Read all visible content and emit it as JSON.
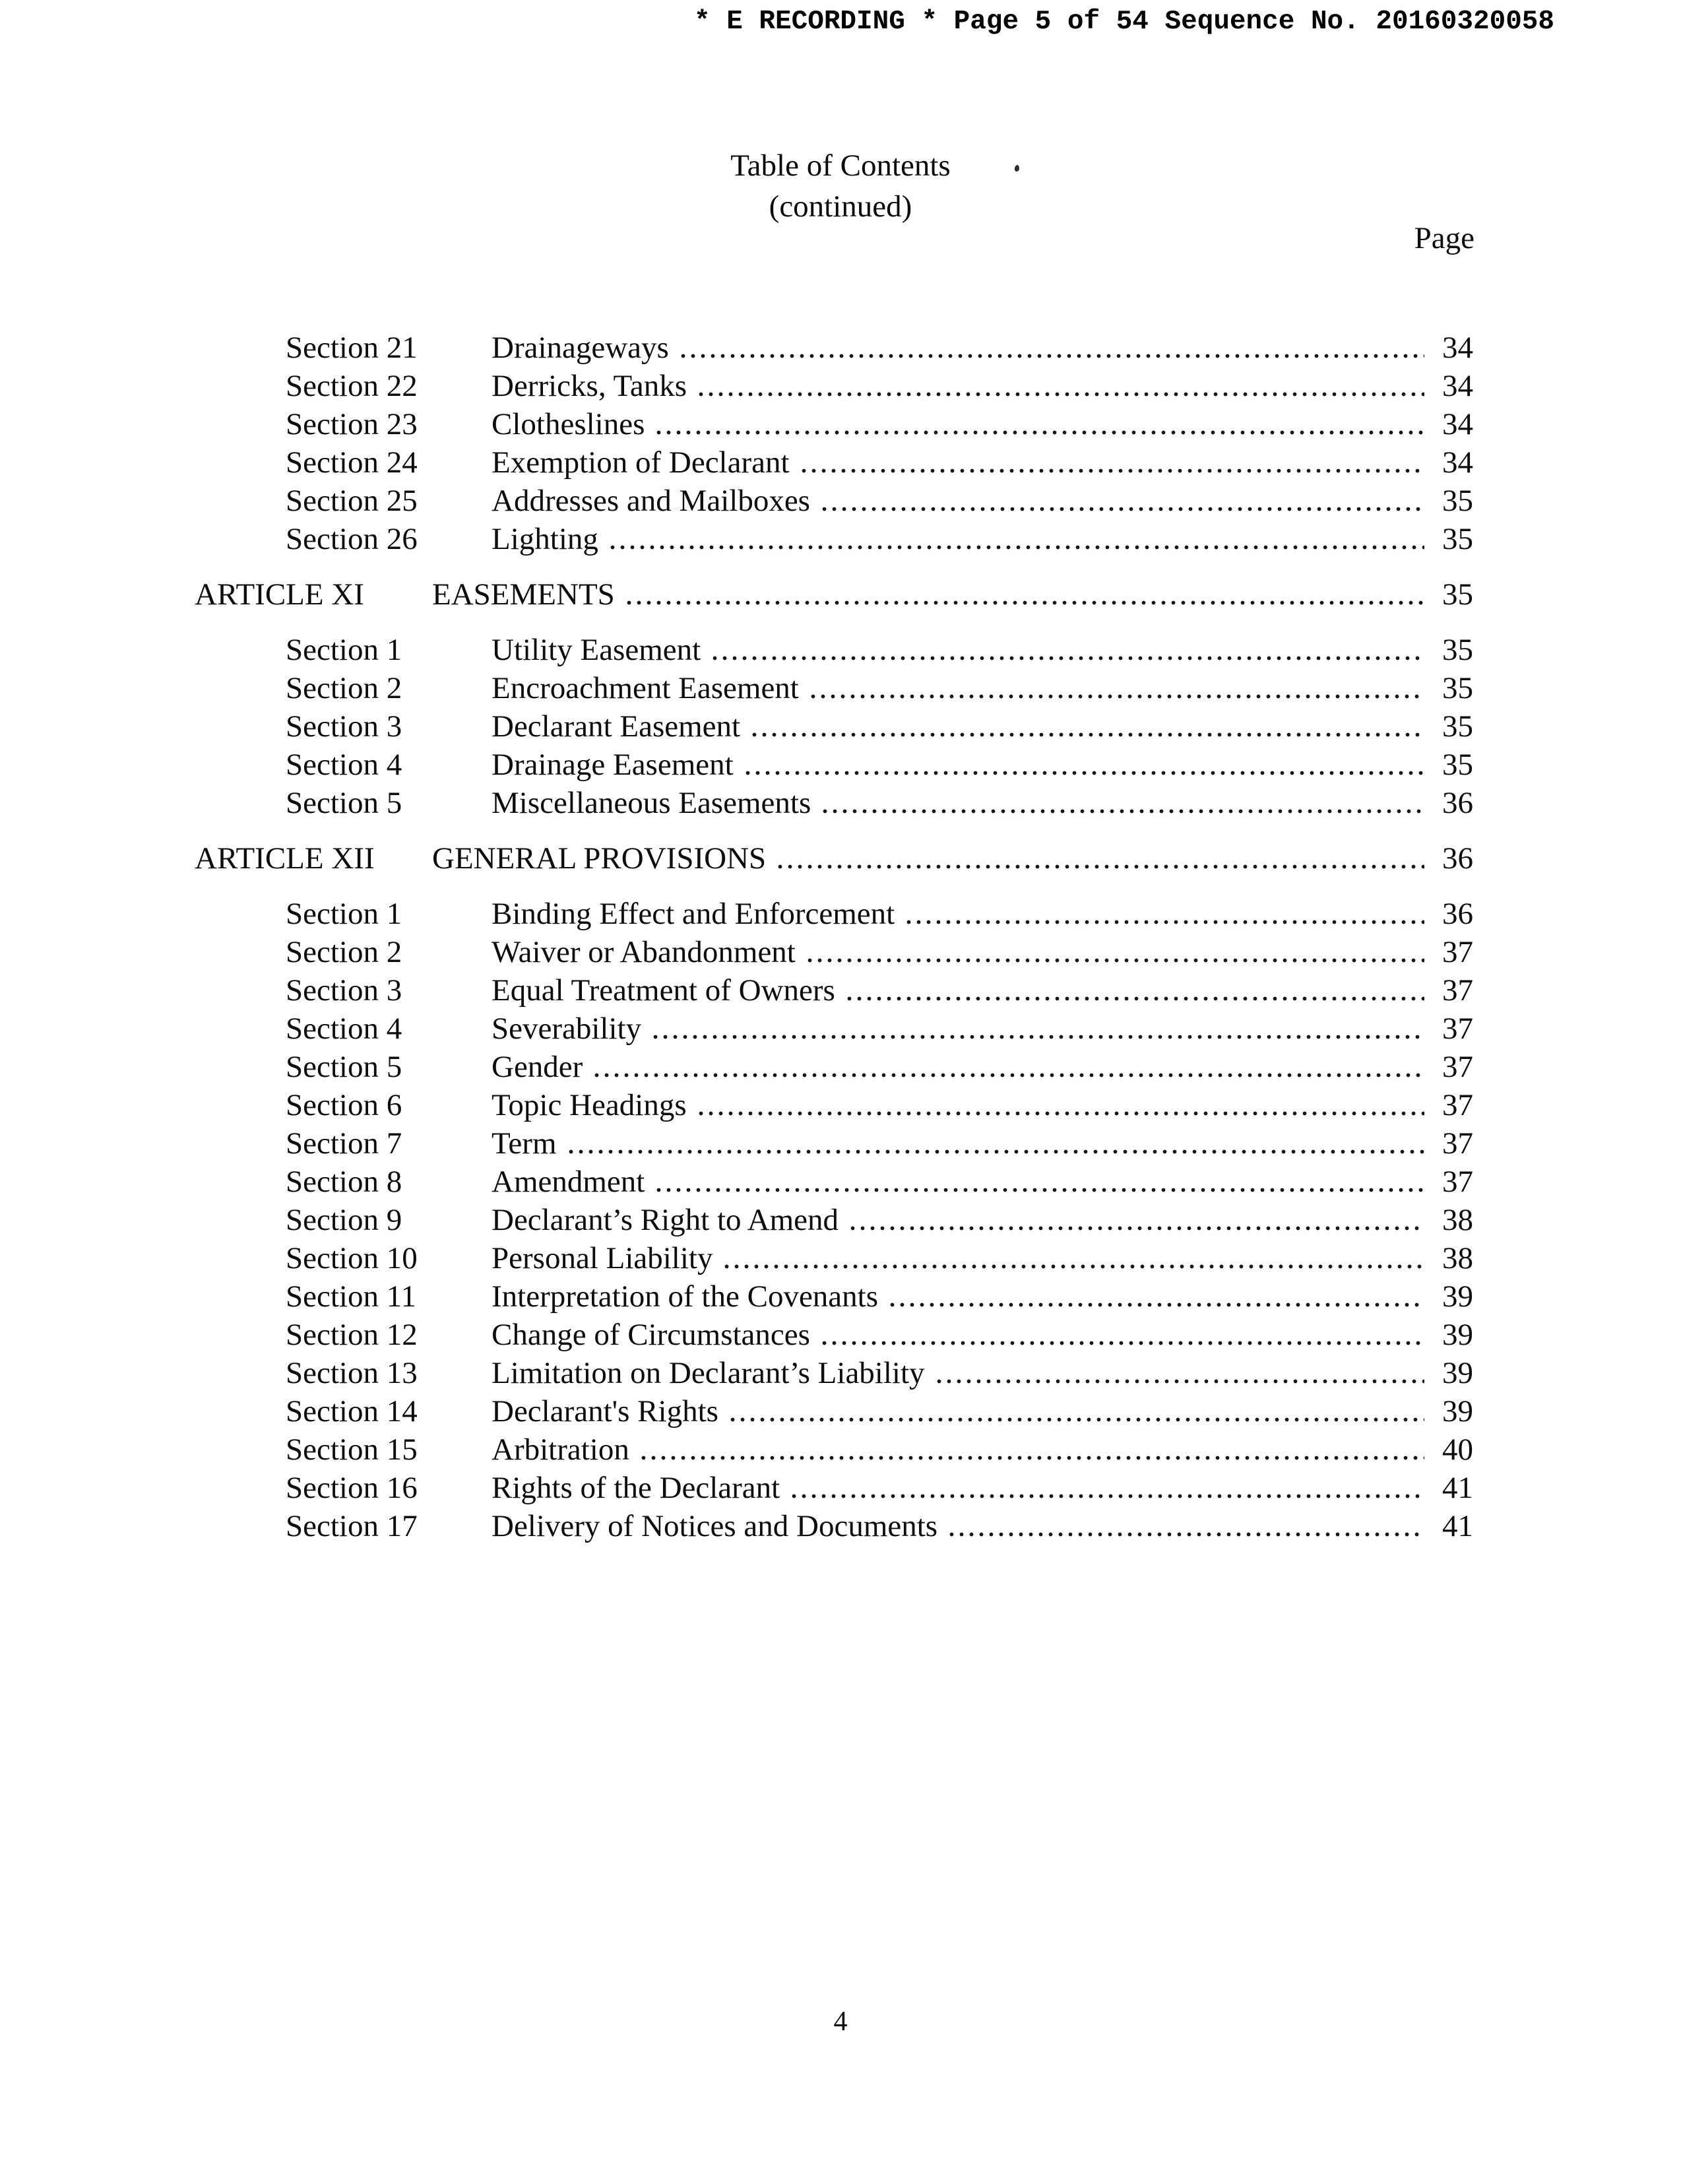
{
  "colors": {
    "ink": "#0e0e0e",
    "paper": "#ffffff"
  },
  "header": {
    "recording_line": "* E RECORDING * Page 5 of 54 Sequence No. 20160320058"
  },
  "title": {
    "line1": "Table of Contents",
    "line2": "(continued)",
    "page_column_label": "Page"
  },
  "toc": {
    "groups": [
      {
        "article": null,
        "entries": [
          {
            "label": "Section 21",
            "title": "Drainageways",
            "page": "34"
          },
          {
            "label": "Section 22",
            "title": "Derricks, Tanks",
            "page": "34"
          },
          {
            "label": "Section 23",
            "title": "Clotheslines",
            "page": "34"
          },
          {
            "label": "Section 24",
            "title": "Exemption of Declarant",
            "page": "34"
          },
          {
            "label": "Section 25",
            "title": "Addresses and Mailboxes",
            "page": "35"
          },
          {
            "label": "Section 26",
            "title": "Lighting",
            "page": "35"
          }
        ]
      },
      {
        "article": {
          "label": "ARTICLE XI",
          "title": "EASEMENTS",
          "page": "35"
        },
        "entries": [
          {
            "label": "Section 1",
            "title": "Utility Easement",
            "page": "35"
          },
          {
            "label": "Section 2",
            "title": "Encroachment Easement",
            "page": "35"
          },
          {
            "label": "Section 3",
            "title": "Declarant Easement",
            "page": "35"
          },
          {
            "label": "Section 4",
            "title": "Drainage Easement",
            "page": "35"
          },
          {
            "label": "Section 5",
            "title": "Miscellaneous Easements",
            "page": "36"
          }
        ]
      },
      {
        "article": {
          "label": "ARTICLE XII",
          "title": "GENERAL PROVISIONS",
          "page": "36"
        },
        "entries": [
          {
            "label": "Section 1",
            "title": "Binding Effect and Enforcement",
            "page": "36"
          },
          {
            "label": "Section 2",
            "title": "Waiver or Abandonment",
            "page": "37"
          },
          {
            "label": "Section 3",
            "title": "Equal Treatment of Owners",
            "page": "37"
          },
          {
            "label": "Section 4",
            "title": "Severability",
            "page": "37"
          },
          {
            "label": "Section 5",
            "title": "Gender",
            "page": "37"
          },
          {
            "label": "Section 6",
            "title": "Topic Headings",
            "page": "37"
          },
          {
            "label": "Section 7",
            "title": "Term",
            "page": "37"
          },
          {
            "label": "Section 8",
            "title": "Amendment",
            "page": "37"
          },
          {
            "label": "Section 9",
            "title": "Declarant’s Right to Amend",
            "page": "38"
          },
          {
            "label": "Section 10",
            "title": "Personal Liability",
            "page": "38"
          },
          {
            "label": "Section 11",
            "title": "Interpretation of the Covenants",
            "page": "39"
          },
          {
            "label": "Section 12",
            "title": "Change of Circumstances",
            "page": "39"
          },
          {
            "label": "Section 13",
            "title": "Limitation on Declarant’s Liability",
            "page": "39"
          },
          {
            "label": "Section 14",
            "title": "Declarant's Rights",
            "page": "39"
          },
          {
            "label": "Section 15",
            "title": "Arbitration",
            "page": "40"
          },
          {
            "label": "Section 16",
            "title": "Rights of the Declarant",
            "page": "41"
          },
          {
            "label": "Section 17",
            "title": "Delivery of Notices and Documents",
            "page": "41"
          }
        ]
      }
    ]
  },
  "footer": {
    "page_number": "4"
  }
}
